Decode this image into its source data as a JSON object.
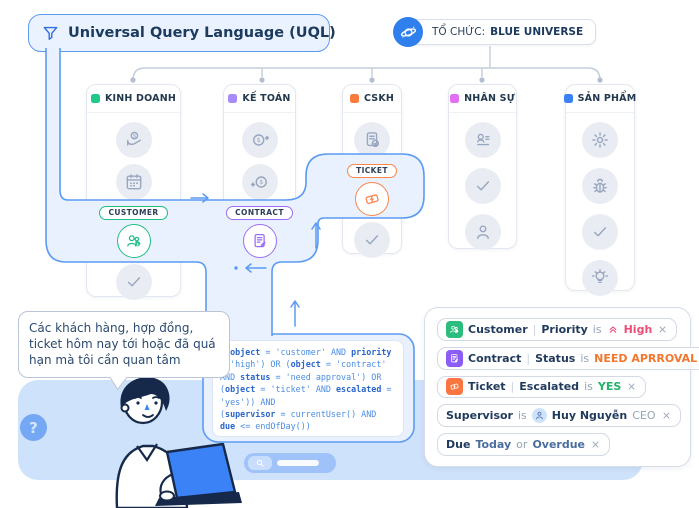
{
  "title": {
    "label": "Universal Query Language (UQL)"
  },
  "org_badge": {
    "prefix": "TỔ CHỨC:",
    "name": "BLUE UNIVERSE"
  },
  "columns": [
    {
      "label": "KINH DOANH",
      "color": "#1ec98b"
    },
    {
      "label": "KẾ TOÁN",
      "color": "#a78bfa"
    },
    {
      "label": "CSKH",
      "color": "#fb7a3c"
    },
    {
      "label": "NHÂN SỰ",
      "color": "#e26ef2"
    },
    {
      "label": "SẢN PHẨM",
      "color": "#3b82f6"
    }
  ],
  "tags": {
    "customer": {
      "label": "CUSTOMER",
      "color": "#1fbe85"
    },
    "contract": {
      "label": "CONTRACT",
      "color": "#9a6ff5"
    },
    "ticket": {
      "label": "TICKET",
      "color": "#f9854f"
    }
  },
  "bubble": {
    "text": "Các khách hàng, hợp đồng, ticket hôm nay tới hoặc đã quá hạn mà tôi cần quan tâm"
  },
  "help": {
    "label": "?"
  },
  "code": {
    "text_color": "#4b8de4",
    "keyword_color": "#2a66cc",
    "lines": [
      [
        {
          "t": "((",
          "b": false
        },
        {
          "t": "object",
          "b": true
        },
        {
          "t": " = 'customer' AND ",
          "b": false
        },
        {
          "t": "priority",
          "b": true
        }
      ],
      [
        {
          "t": "= 'high') OR (",
          "b": false
        },
        {
          "t": "object",
          "b": true
        },
        {
          "t": " = 'contract'",
          "b": false
        }
      ],
      [
        {
          "t": "AND ",
          "b": false
        },
        {
          "t": "status",
          "b": true
        },
        {
          "t": " = 'need approval') OR",
          "b": false
        }
      ],
      [
        {
          "t": "(",
          "b": false
        },
        {
          "t": "object",
          "b": true
        },
        {
          "t": " = 'ticket' AND ",
          "b": false
        },
        {
          "t": "escalated",
          "b": true
        },
        {
          "t": " =",
          "b": false
        }
      ],
      [
        {
          "t": "'yes')) AND",
          "b": false
        }
      ],
      [
        {
          "t": "(",
          "b": false
        },
        {
          "t": "supervisor",
          "b": true
        },
        {
          "t": " = currentUser() AND",
          "b": false
        }
      ],
      [
        {
          "t": "due",
          "b": true
        },
        {
          "t": " <= endOfDay())",
          "b": false
        }
      ]
    ]
  },
  "filters": {
    "customer": {
      "icon_color": "#2bbd7e",
      "entity": "Customer",
      "sep": "|",
      "field": "Priority",
      "op": "is",
      "value": "High",
      "value_color": "#ee4d77"
    },
    "contract": {
      "icon_color": "#8b5cf6",
      "entity": "Contract",
      "sep": "|",
      "field": "Status",
      "op": "is",
      "value": "NEED APRROVAL",
      "value_color": "#f4762d"
    },
    "ticket": {
      "icon_color": "#f97640",
      "entity": "Ticket",
      "sep": "|",
      "field": "Escalated",
      "op": "is",
      "value": "YES",
      "value_color": "#23b26b"
    },
    "supervisor": {
      "field": "Supervisor",
      "op": "is",
      "value": "Huy Nguyễn",
      "suffix": "CEO"
    },
    "due": {
      "field": "Due",
      "value": "Today",
      "op": "or",
      "value2": "Overdue"
    }
  },
  "colors": {
    "accent_blue": "#5b9bf3",
    "highlight_fill": "#e8f1fd",
    "band_blue": "#cfe2fb",
    "navy_text": "#1b3a5e"
  }
}
